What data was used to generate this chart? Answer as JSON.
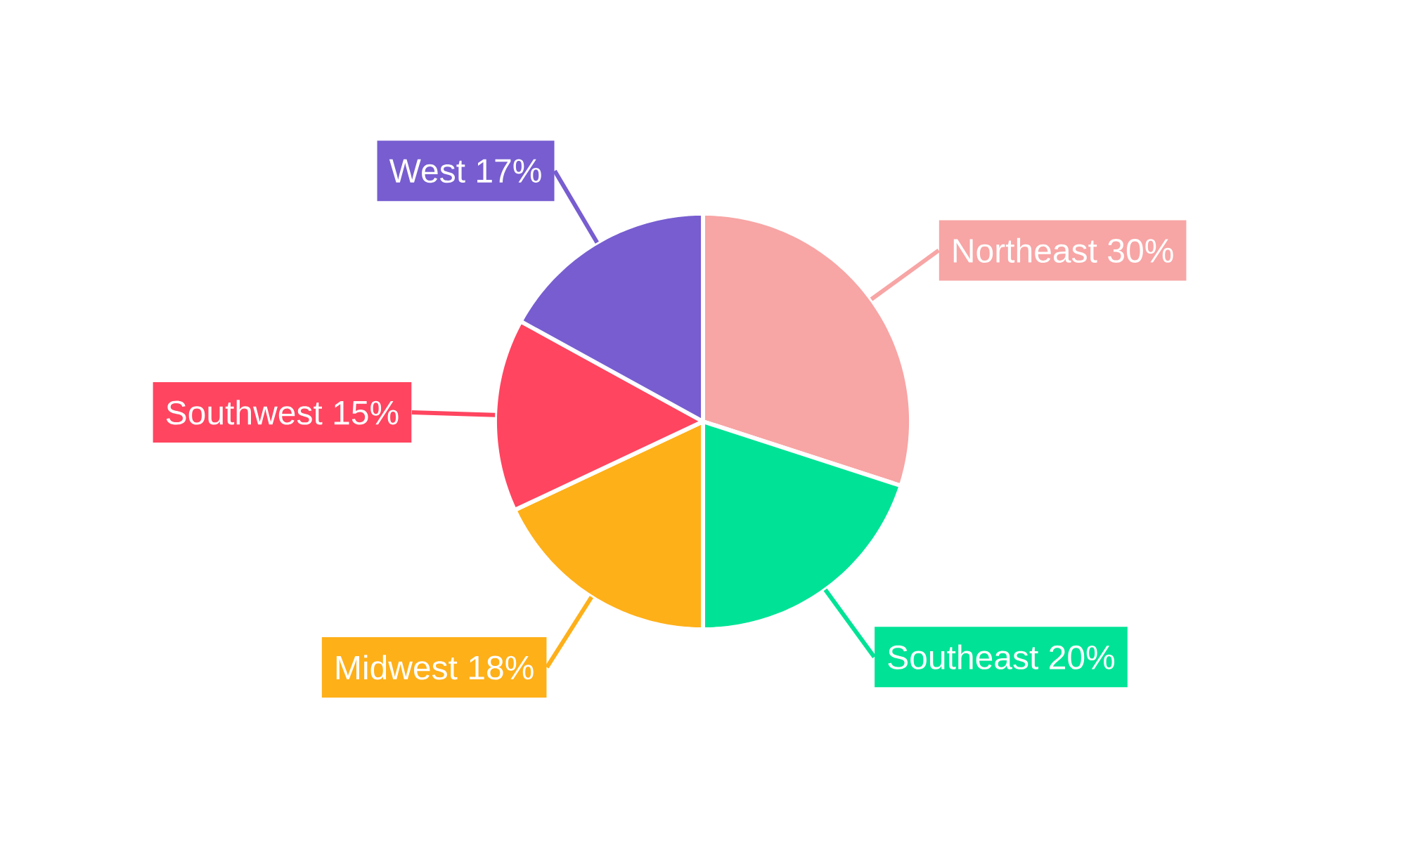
{
  "chart_data": {
    "type": "pie",
    "categories": [
      "Northeast",
      "Southeast",
      "Midwest",
      "Southwest",
      "West"
    ],
    "values": [
      30,
      20,
      18,
      15,
      17
    ],
    "value_labels": [
      "30%",
      "20%",
      "18%",
      "15%",
      "17%"
    ],
    "colors": [
      "#f8a5a5",
      "#00e396",
      "#feb019",
      "#ff4560",
      "#775dd0"
    ]
  }
}
